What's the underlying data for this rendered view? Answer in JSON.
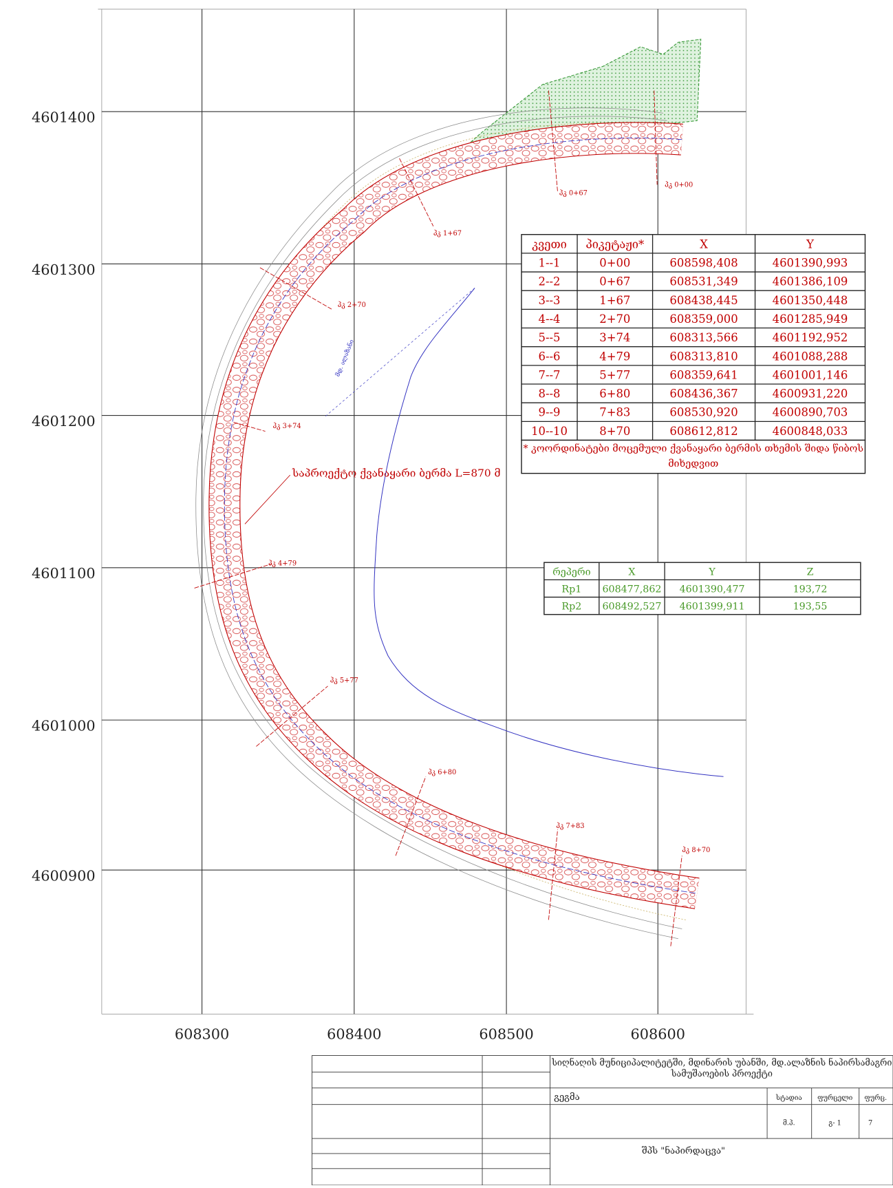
{
  "axes": {
    "x_labels": [
      "608300",
      "608400",
      "608500",
      "608600"
    ],
    "y_labels": [
      "4601400",
      "4601300",
      "4601200",
      "4601100",
      "4601000",
      "4600900"
    ]
  },
  "plan": {
    "berm_label": "საპროექტო ქვანაყარი ბერმა L=870 მ",
    "river_label": "მდ. ალაზანი",
    "pickets": [
      "პკ 0+00",
      "პკ 0+67",
      "პკ 1+67",
      "პკ 2+70",
      "პკ 3+74",
      "პკ 4+79",
      "პკ 5+77",
      "პკ 6+80",
      "პკ 7+83",
      "პკ 8+70"
    ]
  },
  "sections_table": {
    "header": [
      "კვეთი",
      "პიკეტაჟი*",
      "X",
      "Y"
    ],
    "rows": [
      [
        "1--1",
        "0+00",
        "608598,408",
        "4601390,993"
      ],
      [
        "2--2",
        "0+67",
        "608531,349",
        "4601386,109"
      ],
      [
        "3--3",
        "1+67",
        "608438,445",
        "4601350,448"
      ],
      [
        "4--4",
        "2+70",
        "608359,000",
        "4601285,949"
      ],
      [
        "5--5",
        "3+74",
        "608313,566",
        "4601192,952"
      ],
      [
        "6--6",
        "4+79",
        "608313,810",
        "4601088,288"
      ],
      [
        "7--7",
        "5+77",
        "608359,641",
        "4601001,146"
      ],
      [
        "8--8",
        "6+80",
        "608436,367",
        "4600931,220"
      ],
      [
        "9--9",
        "7+83",
        "608530,920",
        "4600890,703"
      ],
      [
        "10--10",
        "8+70",
        "608612,812",
        "4600848,033"
      ]
    ],
    "note": "* კოორდინატები მოცემული ქვანაყარი ბერმის თხემის შიდა წიბოს მიხედვით"
  },
  "benchmarks_table": {
    "header": [
      "რეპერი",
      "X",
      "Y",
      "Z"
    ],
    "rows": [
      [
        "Rp1",
        "608477,862",
        "4601390,477",
        "193,72"
      ],
      [
        "Rp2",
        "608492,527",
        "4601399,911",
        "193,55"
      ]
    ]
  },
  "title_block": {
    "project": "სიღნაღის მუნიციპალიტეტში, მდინარის უბანში, მდ.ალაზნის ნაპირსამაგრი სამუშაოების პროექტი",
    "sheet_title": "გეგმა",
    "stage_header": "სტადია",
    "sheet_header": "ფურცელი",
    "sheets_header": "ფურც.",
    "stage": "მ.პ.",
    "sheet": "გ- 1",
    "sheets": "7",
    "company": "შპს \"ნაპირდაცვა\""
  }
}
